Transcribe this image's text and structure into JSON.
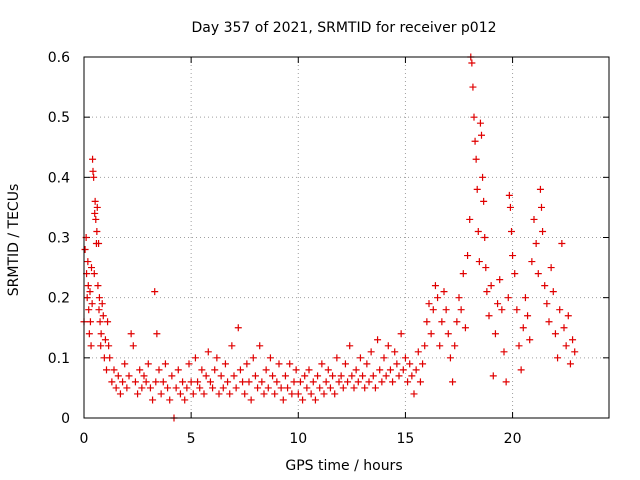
{
  "chart_data": {
    "type": "scatter",
    "title": "Day 357 of 2021, SRMTID for receiver p012",
    "xlabel": "GPS time / hours",
    "ylabel": "SRMTID / TECUs",
    "xlim": [
      0,
      24.5
    ],
    "ylim": [
      0,
      0.6
    ],
    "grid": true,
    "marker": "+",
    "color": "#e00000",
    "x_ticks": [
      {
        "value": 0,
        "label": "0"
      },
      {
        "value": 5,
        "label": "5"
      },
      {
        "value": 10,
        "label": "10"
      },
      {
        "value": 15,
        "label": "15"
      },
      {
        "value": 20,
        "label": "20"
      }
    ],
    "y_ticks": [
      {
        "value": 0,
        "label": "0"
      },
      {
        "value": 0.1,
        "label": "0.1"
      },
      {
        "value": 0.2,
        "label": "0.2"
      },
      {
        "value": 0.3,
        "label": "0.3"
      },
      {
        "value": 0.4,
        "label": "0.4"
      },
      {
        "value": 0.5,
        "label": "0.5"
      },
      {
        "value": 0.6,
        "label": "0.6"
      }
    ],
    "series": [
      {
        "name": "SRMTID",
        "points": [
          [
            0.0,
            0.16
          ],
          [
            0.05,
            0.28
          ],
          [
            0.1,
            0.3
          ],
          [
            0.12,
            0.24
          ],
          [
            0.15,
            0.2
          ],
          [
            0.18,
            0.26
          ],
          [
            0.2,
            0.22
          ],
          [
            0.22,
            0.18
          ],
          [
            0.25,
            0.14
          ],
          [
            0.28,
            0.21
          ],
          [
            0.3,
            0.16
          ],
          [
            0.33,
            0.12
          ],
          [
            0.35,
            0.25
          ],
          [
            0.38,
            0.19
          ],
          [
            0.4,
            0.43
          ],
          [
            0.42,
            0.41
          ],
          [
            0.45,
            0.4
          ],
          [
            0.48,
            0.24
          ],
          [
            0.5,
            0.34
          ],
          [
            0.52,
            0.36
          ],
          [
            0.55,
            0.33
          ],
          [
            0.58,
            0.29
          ],
          [
            0.6,
            0.31
          ],
          [
            0.62,
            0.35
          ],
          [
            0.65,
            0.22
          ],
          [
            0.68,
            0.29
          ],
          [
            0.7,
            0.18
          ],
          [
            0.72,
            0.2
          ],
          [
            0.75,
            0.16
          ],
          [
            0.78,
            0.12
          ],
          [
            0.8,
            0.14
          ],
          [
            0.85,
            0.19
          ],
          [
            0.9,
            0.17
          ],
          [
            0.95,
            0.1
          ],
          [
            1.0,
            0.13
          ],
          [
            1.05,
            0.08
          ],
          [
            1.1,
            0.16
          ],
          [
            1.15,
            0.12
          ],
          [
            1.2,
            0.1
          ],
          [
            1.3,
            0.06
          ],
          [
            1.4,
            0.08
          ],
          [
            1.5,
            0.05
          ],
          [
            1.6,
            0.07
          ],
          [
            1.7,
            0.04
          ],
          [
            1.8,
            0.06
          ],
          [
            1.9,
            0.09
          ],
          [
            2.0,
            0.05
          ],
          [
            2.1,
            0.07
          ],
          [
            2.2,
            0.14
          ],
          [
            2.3,
            0.12
          ],
          [
            2.4,
            0.06
          ],
          [
            2.5,
            0.04
          ],
          [
            2.6,
            0.08
          ],
          [
            2.7,
            0.05
          ],
          [
            2.8,
            0.07
          ],
          [
            2.9,
            0.06
          ],
          [
            3.0,
            0.09
          ],
          [
            3.1,
            0.05
          ],
          [
            3.2,
            0.03
          ],
          [
            3.3,
            0.21
          ],
          [
            3.35,
            0.06
          ],
          [
            3.4,
            0.14
          ],
          [
            3.5,
            0.08
          ],
          [
            3.6,
            0.04
          ],
          [
            3.7,
            0.06
          ],
          [
            3.8,
            0.09
          ],
          [
            3.9,
            0.05
          ],
          [
            4.0,
            0.03
          ],
          [
            4.1,
            0.07
          ],
          [
            4.2,
            0.0
          ],
          [
            4.3,
            0.05
          ],
          [
            4.4,
            0.08
          ],
          [
            4.5,
            0.04
          ],
          [
            4.6,
            0.06
          ],
          [
            4.7,
            0.03
          ],
          [
            4.8,
            0.05
          ],
          [
            4.9,
            0.09
          ],
          [
            5.0,
            0.06
          ],
          [
            5.1,
            0.04
          ],
          [
            5.2,
            0.1
          ],
          [
            5.3,
            0.06
          ],
          [
            5.4,
            0.05
          ],
          [
            5.5,
            0.08
          ],
          [
            5.6,
            0.04
          ],
          [
            5.7,
            0.07
          ],
          [
            5.8,
            0.11
          ],
          [
            5.9,
            0.06
          ],
          [
            6.0,
            0.05
          ],
          [
            6.1,
            0.08
          ],
          [
            6.2,
            0.1
          ],
          [
            6.3,
            0.04
          ],
          [
            6.4,
            0.07
          ],
          [
            6.5,
            0.05
          ],
          [
            6.6,
            0.09
          ],
          [
            6.7,
            0.06
          ],
          [
            6.8,
            0.04
          ],
          [
            6.9,
            0.12
          ],
          [
            7.0,
            0.07
          ],
          [
            7.1,
            0.05
          ],
          [
            7.2,
            0.15
          ],
          [
            7.3,
            0.08
          ],
          [
            7.4,
            0.06
          ],
          [
            7.5,
            0.04
          ],
          [
            7.6,
            0.09
          ],
          [
            7.7,
            0.06
          ],
          [
            7.8,
            0.03
          ],
          [
            7.9,
            0.1
          ],
          [
            8.0,
            0.07
          ],
          [
            8.1,
            0.05
          ],
          [
            8.2,
            0.12
          ],
          [
            8.3,
            0.06
          ],
          [
            8.4,
            0.04
          ],
          [
            8.5,
            0.08
          ],
          [
            8.6,
            0.05
          ],
          [
            8.7,
            0.1
          ],
          [
            8.8,
            0.07
          ],
          [
            8.9,
            0.04
          ],
          [
            9.0,
            0.06
          ],
          [
            9.1,
            0.09
          ],
          [
            9.2,
            0.05
          ],
          [
            9.3,
            0.03
          ],
          [
            9.4,
            0.07
          ],
          [
            9.5,
            0.05
          ],
          [
            9.6,
            0.09
          ],
          [
            9.7,
            0.04
          ],
          [
            9.8,
            0.06
          ],
          [
            9.9,
            0.08
          ],
          [
            10.0,
            0.04
          ],
          [
            10.1,
            0.06
          ],
          [
            10.2,
            0.03
          ],
          [
            10.3,
            0.07
          ],
          [
            10.4,
            0.05
          ],
          [
            10.5,
            0.08
          ],
          [
            10.6,
            0.04
          ],
          [
            10.7,
            0.06
          ],
          [
            10.8,
            0.03
          ],
          [
            10.9,
            0.07
          ],
          [
            11.0,
            0.05
          ],
          [
            11.1,
            0.09
          ],
          [
            11.2,
            0.04
          ],
          [
            11.3,
            0.06
          ],
          [
            11.4,
            0.08
          ],
          [
            11.5,
            0.05
          ],
          [
            11.6,
            0.07
          ],
          [
            11.7,
            0.04
          ],
          [
            11.8,
            0.1
          ],
          [
            11.9,
            0.06
          ],
          [
            12.0,
            0.07
          ],
          [
            12.1,
            0.05
          ],
          [
            12.2,
            0.09
          ],
          [
            12.3,
            0.06
          ],
          [
            12.4,
            0.12
          ],
          [
            12.5,
            0.07
          ],
          [
            12.6,
            0.05
          ],
          [
            12.7,
            0.08
          ],
          [
            12.8,
            0.06
          ],
          [
            12.9,
            0.1
          ],
          [
            13.0,
            0.07
          ],
          [
            13.1,
            0.05
          ],
          [
            13.2,
            0.09
          ],
          [
            13.3,
            0.06
          ],
          [
            13.4,
            0.11
          ],
          [
            13.5,
            0.07
          ],
          [
            13.6,
            0.05
          ],
          [
            13.7,
            0.13
          ],
          [
            13.8,
            0.08
          ],
          [
            13.9,
            0.06
          ],
          [
            14.0,
            0.1
          ],
          [
            14.1,
            0.07
          ],
          [
            14.2,
            0.12
          ],
          [
            14.3,
            0.08
          ],
          [
            14.4,
            0.06
          ],
          [
            14.5,
            0.11
          ],
          [
            14.6,
            0.09
          ],
          [
            14.7,
            0.07
          ],
          [
            14.8,
            0.14
          ],
          [
            14.9,
            0.08
          ],
          [
            15.0,
            0.1
          ],
          [
            15.1,
            0.06
          ],
          [
            15.2,
            0.09
          ],
          [
            15.3,
            0.07
          ],
          [
            15.4,
            0.04
          ],
          [
            15.5,
            0.08
          ],
          [
            15.6,
            0.11
          ],
          [
            15.7,
            0.06
          ],
          [
            15.8,
            0.09
          ],
          [
            15.9,
            0.12
          ],
          [
            16.0,
            0.16
          ],
          [
            16.1,
            0.19
          ],
          [
            16.2,
            0.14
          ],
          [
            16.3,
            0.18
          ],
          [
            16.4,
            0.22
          ],
          [
            16.5,
            0.2
          ],
          [
            16.6,
            0.12
          ],
          [
            16.7,
            0.16
          ],
          [
            16.8,
            0.21
          ],
          [
            16.9,
            0.18
          ],
          [
            17.0,
            0.14
          ],
          [
            17.1,
            0.1
          ],
          [
            17.2,
            0.06
          ],
          [
            17.3,
            0.12
          ],
          [
            17.4,
            0.16
          ],
          [
            17.5,
            0.2
          ],
          [
            17.6,
            0.18
          ],
          [
            17.7,
            0.24
          ],
          [
            17.8,
            0.15
          ],
          [
            17.9,
            0.27
          ],
          [
            18.0,
            0.33
          ],
          [
            18.05,
            0.6
          ],
          [
            18.1,
            0.59
          ],
          [
            18.15,
            0.55
          ],
          [
            18.2,
            0.5
          ],
          [
            18.25,
            0.46
          ],
          [
            18.3,
            0.43
          ],
          [
            18.35,
            0.38
          ],
          [
            18.4,
            0.31
          ],
          [
            18.45,
            0.26
          ],
          [
            18.5,
            0.49
          ],
          [
            18.55,
            0.47
          ],
          [
            18.6,
            0.4
          ],
          [
            18.65,
            0.36
          ],
          [
            18.7,
            0.3
          ],
          [
            18.75,
            0.25
          ],
          [
            18.8,
            0.21
          ],
          [
            18.9,
            0.17
          ],
          [
            19.0,
            0.22
          ],
          [
            19.1,
            0.07
          ],
          [
            19.2,
            0.14
          ],
          [
            19.3,
            0.19
          ],
          [
            19.4,
            0.23
          ],
          [
            19.5,
            0.18
          ],
          [
            19.6,
            0.11
          ],
          [
            19.7,
            0.06
          ],
          [
            19.8,
            0.2
          ],
          [
            19.85,
            0.37
          ],
          [
            19.9,
            0.35
          ],
          [
            19.95,
            0.31
          ],
          [
            20.0,
            0.27
          ],
          [
            20.1,
            0.24
          ],
          [
            20.2,
            0.18
          ],
          [
            20.3,
            0.12
          ],
          [
            20.4,
            0.08
          ],
          [
            20.5,
            0.15
          ],
          [
            20.6,
            0.2
          ],
          [
            20.7,
            0.17
          ],
          [
            20.8,
            0.13
          ],
          [
            20.9,
            0.26
          ],
          [
            21.0,
            0.33
          ],
          [
            21.1,
            0.29
          ],
          [
            21.2,
            0.24
          ],
          [
            21.3,
            0.38
          ],
          [
            21.35,
            0.35
          ],
          [
            21.4,
            0.31
          ],
          [
            21.5,
            0.22
          ],
          [
            21.6,
            0.19
          ],
          [
            21.7,
            0.16
          ],
          [
            21.8,
            0.25
          ],
          [
            21.9,
            0.21
          ],
          [
            22.0,
            0.14
          ],
          [
            22.1,
            0.1
          ],
          [
            22.2,
            0.18
          ],
          [
            22.3,
            0.29
          ],
          [
            22.4,
            0.15
          ],
          [
            22.5,
            0.12
          ],
          [
            22.6,
            0.17
          ],
          [
            22.7,
            0.09
          ],
          [
            22.8,
            0.13
          ],
          [
            22.9,
            0.11
          ]
        ]
      }
    ]
  }
}
